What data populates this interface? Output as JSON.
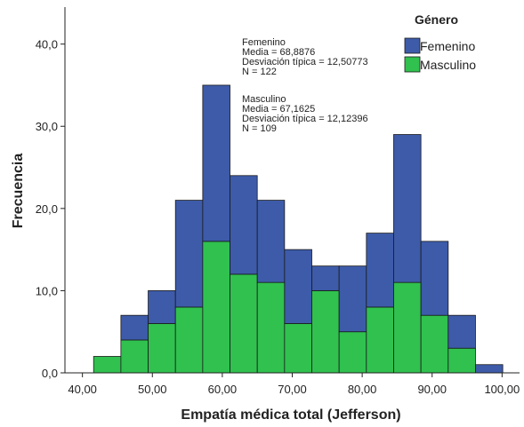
{
  "chart_data": {
    "type": "bar",
    "stacked": true,
    "xlabel": "Empatía médica total (Jefferson)",
    "ylabel": "Frecuencia",
    "xlim": [
      37.5,
      102.5
    ],
    "ylim": [
      0,
      44.5
    ],
    "x_ticks": [
      40,
      50,
      60,
      70,
      80,
      90,
      100
    ],
    "x_tick_labels": [
      "40,00",
      "50,00",
      "60,00",
      "70,00",
      "80,00",
      "90,00",
      "100,00"
    ],
    "y_ticks": [
      0,
      10,
      20,
      30,
      40
    ],
    "y_tick_labels": [
      "0,0",
      "10,0",
      "20,0",
      "30,0",
      "40,0"
    ],
    "bins": [
      [
        41.6,
        45.5
      ],
      [
        45.5,
        49.4
      ],
      [
        49.4,
        53.3
      ],
      [
        53.3,
        57.2
      ],
      [
        57.2,
        61.1
      ],
      [
        61.1,
        65.0
      ],
      [
        65.0,
        68.9
      ],
      [
        68.9,
        72.8
      ],
      [
        72.8,
        76.7
      ],
      [
        76.7,
        80.6
      ],
      [
        80.6,
        84.5
      ],
      [
        84.5,
        88.4
      ],
      [
        88.4,
        92.3
      ],
      [
        92.3,
        96.2
      ],
      [
        96.2,
        100.1
      ]
    ],
    "series": [
      {
        "name": "Masculino",
        "color": "#30c14f",
        "values": [
          2,
          4,
          6,
          8,
          16,
          12,
          11,
          6,
          10,
          5,
          8,
          11,
          7,
          3,
          0
        ]
      },
      {
        "name": "Femenino",
        "color": "#3d5ba9",
        "values": [
          0,
          3,
          4,
          13,
          19,
          12,
          10,
          9,
          3,
          8,
          9,
          18,
          9,
          4,
          1
        ]
      }
    ],
    "legend": {
      "title": "Género",
      "position": "top-right",
      "entries": [
        {
          "label": "Femenino",
          "color": "#3d5ba9"
        },
        {
          "label": "Masculino",
          "color": "#30c14f"
        }
      ]
    },
    "annotations": {
      "femenino": [
        "Femenino",
        "Media = 68,8876",
        "Desviación típica = 12,50773",
        "N = 122"
      ],
      "masculino": [
        "Masculino",
        "Media = 67,1625",
        "Desviación típica = 12,12396",
        "N = 109"
      ]
    },
    "grid": false,
    "colors": {
      "femenino": "#3d5ba9",
      "masculino": "#30c14f",
      "edge": "#1a1a1a"
    }
  }
}
